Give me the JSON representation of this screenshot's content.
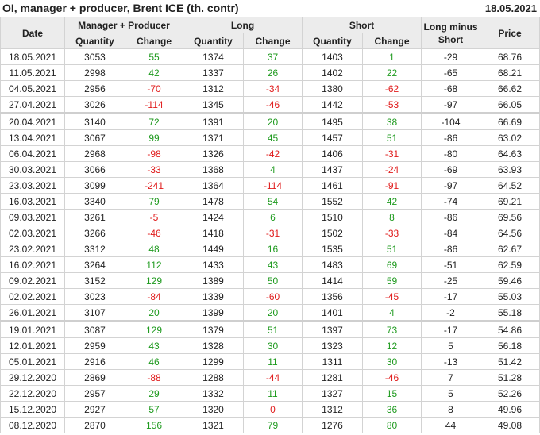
{
  "header": {
    "title": "OI, manager + producer, Brent ICE (th. contr)",
    "date": "18.05.2021"
  },
  "table": {
    "columns": {
      "date": "Date",
      "group_mp": "Manager + Producer",
      "group_long": "Long",
      "group_short": "Short",
      "long_minus_short": "Long minus Short",
      "price": "Price",
      "quantity": "Quantity",
      "change": "Change"
    },
    "rows": [
      [
        "18.05.2021",
        "3053",
        "55",
        "1374",
        "37",
        "1403",
        "1",
        "-29",
        "68.76"
      ],
      [
        "11.05.2021",
        "2998",
        "42",
        "1337",
        "26",
        "1402",
        "22",
        "-65",
        "68.21"
      ],
      [
        "04.05.2021",
        "2956",
        "-70",
        "1312",
        "-34",
        "1380",
        "-62",
        "-68",
        "66.62"
      ],
      [
        "27.04.2021",
        "3026",
        "-114",
        "1345",
        "-46",
        "1442",
        "-53",
        "-97",
        "66.05"
      ],
      [
        "20.04.2021",
        "3140",
        "72",
        "1391",
        "20",
        "1495",
        "38",
        "-104",
        "66.69"
      ],
      [
        "13.04.2021",
        "3067",
        "99",
        "1371",
        "45",
        "1457",
        "51",
        "-86",
        "63.02"
      ],
      [
        "06.04.2021",
        "2968",
        "-98",
        "1326",
        "-42",
        "1406",
        "-31",
        "-80",
        "64.63"
      ],
      [
        "30.03.2021",
        "3066",
        "-33",
        "1368",
        "4",
        "1437",
        "-24",
        "-69",
        "63.93"
      ],
      [
        "23.03.2021",
        "3099",
        "-241",
        "1364",
        "-114",
        "1461",
        "-91",
        "-97",
        "64.52"
      ],
      [
        "16.03.2021",
        "3340",
        "79",
        "1478",
        "54",
        "1552",
        "42",
        "-74",
        "69.21"
      ],
      [
        "09.03.2021",
        "3261",
        "-5",
        "1424",
        "6",
        "1510",
        "8",
        "-86",
        "69.56"
      ],
      [
        "02.03.2021",
        "3266",
        "-46",
        "1418",
        "-31",
        "1502",
        "-33",
        "-84",
        "64.56"
      ],
      [
        "23.02.2021",
        "3312",
        "48",
        "1449",
        "16",
        "1535",
        "51",
        "-86",
        "62.67"
      ],
      [
        "16.02.2021",
        "3264",
        "112",
        "1433",
        "43",
        "1483",
        "69",
        "-51",
        "62.59"
      ],
      [
        "09.02.2021",
        "3152",
        "129",
        "1389",
        "50",
        "1414",
        "59",
        "-25",
        "59.46"
      ],
      [
        "02.02.2021",
        "3023",
        "-84",
        "1339",
        "-60",
        "1356",
        "-45",
        "-17",
        "55.03"
      ],
      [
        "26.01.2021",
        "3107",
        "20",
        "1399",
        "20",
        "1401",
        "4",
        "-2",
        "55.18"
      ],
      [
        "19.01.2021",
        "3087",
        "129",
        "1379",
        "51",
        "1397",
        "73",
        "-17",
        "54.86"
      ],
      [
        "12.01.2021",
        "2959",
        "43",
        "1328",
        "30",
        "1323",
        "12",
        "5",
        "56.18"
      ],
      [
        "05.01.2021",
        "2916",
        "46",
        "1299",
        "11",
        "1311",
        "30",
        "-13",
        "51.42"
      ],
      [
        "29.12.2020",
        "2869",
        "-88",
        "1288",
        "-44",
        "1281",
        "-46",
        "7",
        "51.28"
      ],
      [
        "22.12.2020",
        "2957",
        "29",
        "1332",
        "11",
        "1327",
        "15",
        "5",
        "52.26"
      ],
      [
        "15.12.2020",
        "2927",
        "57",
        "1320",
        "0",
        "1312",
        "36",
        "8",
        "49.96"
      ],
      [
        "08.12.2020",
        "2870",
        "156",
        "1321",
        "79",
        "1276",
        "80",
        "44",
        "49.08"
      ]
    ]
  },
  "colors": {
    "positive": "#1e9a1e",
    "negative": "#e01b1b",
    "header_bg": "#ececec",
    "border": "#d3d3d3"
  }
}
